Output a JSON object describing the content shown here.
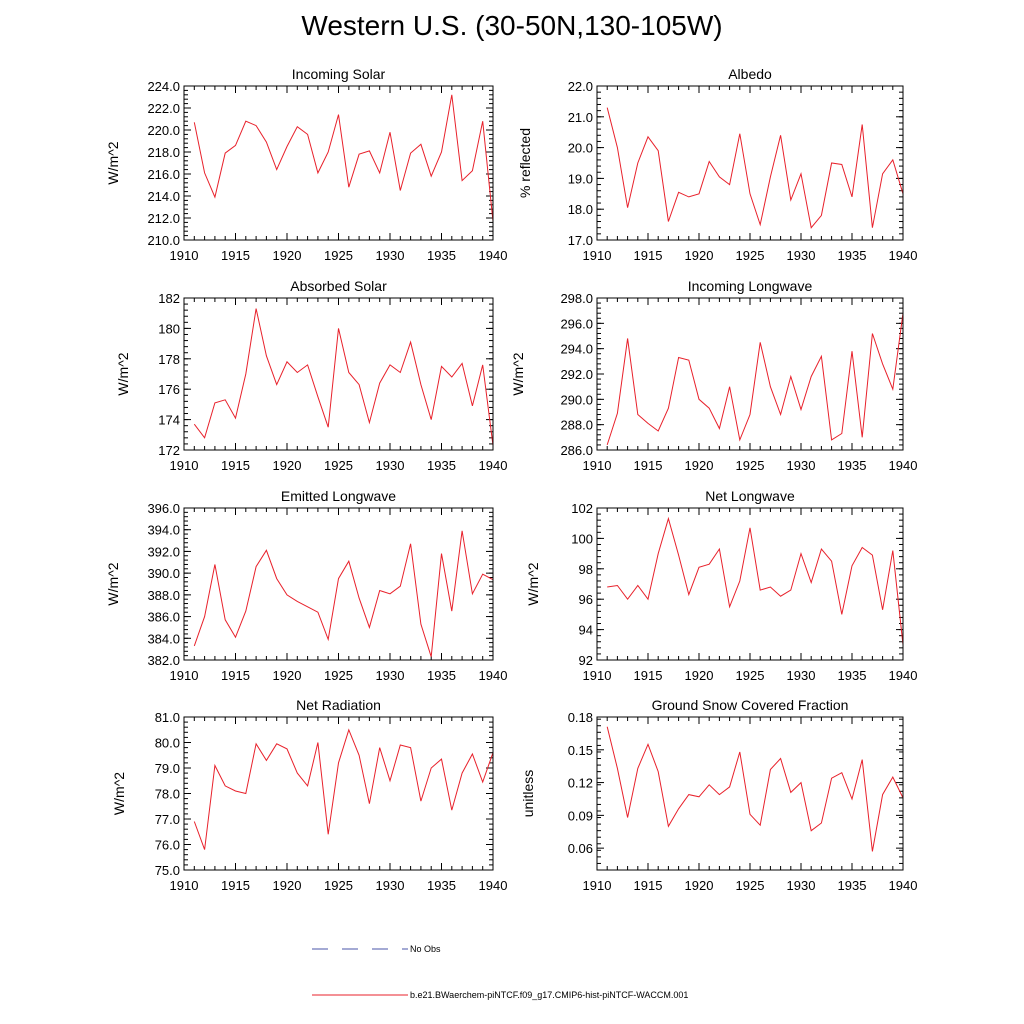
{
  "page": {
    "title": "Western U.S. (30-50N,130-105W)"
  },
  "legend": {
    "no_obs_label": "No Obs",
    "no_obs_color": "#4a55a8",
    "run_label": "b.e21.BWaerchem-piNTCF.f09_g17.CMIP6-hist-piNTCF-WACCM.001",
    "run_color": "#e8212b"
  },
  "chart_data": [
    {
      "type": "line",
      "title": "Incoming Solar",
      "ylabel": "W/m^2",
      "xlim": [
        1910,
        1940
      ],
      "ylim": [
        210.0,
        224.0
      ],
      "xticks": [
        1910,
        1915,
        1920,
        1925,
        1930,
        1935,
        1940
      ],
      "yticks": [
        "210.0",
        "212.0",
        "214.0",
        "216.0",
        "218.0",
        "220.0",
        "222.0",
        "224.0"
      ],
      "x": [
        1911,
        1912,
        1913,
        1914,
        1915,
        1916,
        1917,
        1918,
        1919,
        1920,
        1921,
        1922,
        1923,
        1924,
        1925,
        1926,
        1927,
        1928,
        1929,
        1930,
        1931,
        1932,
        1933,
        1934,
        1935,
        1936,
        1937,
        1938,
        1939,
        1940
      ],
      "values": [
        220.7,
        216.1,
        213.9,
        217.9,
        218.6,
        220.8,
        220.4,
        218.9,
        216.4,
        218.5,
        220.3,
        219.6,
        216.1,
        218.0,
        221.4,
        214.8,
        217.8,
        218.1,
        216.1,
        219.8,
        214.5,
        217.9,
        218.7,
        215.8,
        218.0,
        223.2,
        215.4,
        216.3,
        220.8,
        211.7
      ]
    },
    {
      "type": "line",
      "title": "Albedo",
      "ylabel": "% reflected",
      "xlim": [
        1910,
        1940
      ],
      "ylim": [
        17.0,
        22.0
      ],
      "xticks": [
        1910,
        1915,
        1920,
        1925,
        1930,
        1935,
        1940
      ],
      "yticks": [
        "17.0",
        "18.0",
        "19.0",
        "20.0",
        "21.0",
        "22.0"
      ],
      "x": [
        1911,
        1912,
        1913,
        1914,
        1915,
        1916,
        1917,
        1918,
        1919,
        1920,
        1921,
        1922,
        1923,
        1924,
        1925,
        1926,
        1927,
        1928,
        1929,
        1930,
        1931,
        1932,
        1933,
        1934,
        1935,
        1936,
        1937,
        1938,
        1939,
        1940
      ],
      "values": [
        21.3,
        20.0,
        18.05,
        19.5,
        20.35,
        19.9,
        17.6,
        18.55,
        18.4,
        18.5,
        19.55,
        19.05,
        18.8,
        20.45,
        18.5,
        17.5,
        19.05,
        20.4,
        18.3,
        19.15,
        17.4,
        17.8,
        19.5,
        19.45,
        18.4,
        20.75,
        17.4,
        19.15,
        19.6,
        18.5
      ]
    },
    {
      "type": "line",
      "title": "Absorbed Solar",
      "ylabel": "W/m^2",
      "xlim": [
        1910,
        1940
      ],
      "ylim": [
        172,
        182
      ],
      "xticks": [
        1910,
        1915,
        1920,
        1925,
        1930,
        1935,
        1940
      ],
      "yticks": [
        "172",
        "174",
        "176",
        "178",
        "180",
        "182"
      ],
      "x": [
        1911,
        1912,
        1913,
        1914,
        1915,
        1916,
        1917,
        1918,
        1919,
        1920,
        1921,
        1922,
        1923,
        1924,
        1925,
        1926,
        1927,
        1928,
        1929,
        1930,
        1931,
        1932,
        1933,
        1934,
        1935,
        1936,
        1937,
        1938,
        1939,
        1940
      ],
      "values": [
        173.7,
        172.8,
        175.1,
        175.3,
        174.1,
        177.0,
        181.3,
        178.2,
        176.3,
        177.8,
        177.1,
        177.6,
        175.5,
        173.5,
        180.0,
        177.1,
        176.3,
        173.8,
        176.4,
        177.6,
        177.1,
        179.1,
        176.3,
        174.0,
        177.5,
        176.8,
        177.7,
        174.9,
        177.6,
        172.3
      ]
    },
    {
      "type": "line",
      "title": "Incoming Longwave",
      "ylabel": "W/m^2",
      "xlim": [
        1910,
        1940
      ],
      "ylim": [
        286.0,
        298.0
      ],
      "xticks": [
        1910,
        1915,
        1920,
        1925,
        1930,
        1935,
        1940
      ],
      "yticks": [
        "286.0",
        "288.0",
        "290.0",
        "292.0",
        "294.0",
        "296.0",
        "298.0"
      ],
      "x": [
        1911,
        1912,
        1913,
        1914,
        1915,
        1916,
        1917,
        1918,
        1919,
        1920,
        1921,
        1922,
        1923,
        1924,
        1925,
        1926,
        1927,
        1928,
        1929,
        1930,
        1931,
        1932,
        1933,
        1934,
        1935,
        1936,
        1937,
        1938,
        1939,
        1940
      ],
      "values": [
        286.4,
        288.9,
        294.8,
        288.8,
        288.1,
        287.5,
        289.3,
        293.3,
        293.1,
        290.0,
        289.3,
        287.7,
        291.0,
        286.8,
        288.8,
        294.5,
        291.0,
        288.8,
        291.8,
        289.2,
        291.8,
        293.4,
        286.8,
        287.3,
        293.8,
        287.0,
        295.2,
        292.8,
        290.8,
        296.8
      ]
    },
    {
      "type": "line",
      "title": "Emitted Longwave",
      "ylabel": "W/m^2",
      "xlim": [
        1910,
        1940
      ],
      "ylim": [
        382.0,
        396.0
      ],
      "xticks": [
        1910,
        1915,
        1920,
        1925,
        1930,
        1935,
        1940
      ],
      "yticks": [
        "382.0",
        "384.0",
        "386.0",
        "388.0",
        "390.0",
        "392.0",
        "394.0",
        "396.0"
      ],
      "x": [
        1911,
        1912,
        1913,
        1914,
        1915,
        1916,
        1917,
        1918,
        1919,
        1920,
        1921,
        1922,
        1923,
        1924,
        1925,
        1926,
        1927,
        1928,
        1929,
        1930,
        1931,
        1932,
        1933,
        1934,
        1935,
        1936,
        1937,
        1938,
        1939,
        1940
      ],
      "values": [
        383.3,
        386.0,
        390.8,
        385.7,
        384.1,
        386.5,
        390.6,
        392.1,
        389.5,
        388.0,
        387.4,
        386.9,
        386.4,
        383.9,
        389.5,
        391.1,
        387.7,
        385.0,
        388.4,
        388.1,
        388.8,
        392.7,
        385.3,
        382.3,
        391.8,
        386.5,
        393.9,
        388.1,
        389.9,
        389.4
      ]
    },
    {
      "type": "line",
      "title": "Net Longwave",
      "ylabel": "W/m^2",
      "xlim": [
        1910,
        1940
      ],
      "ylim": [
        92,
        102
      ],
      "xticks": [
        1910,
        1915,
        1920,
        1925,
        1930,
        1935,
        1940
      ],
      "yticks": [
        "92",
        "94",
        "96",
        "98",
        "100",
        "102"
      ],
      "x": [
        1911,
        1912,
        1913,
        1914,
        1915,
        1916,
        1917,
        1918,
        1919,
        1920,
        1921,
        1922,
        1923,
        1924,
        1925,
        1926,
        1927,
        1928,
        1929,
        1930,
        1931,
        1932,
        1933,
        1934,
        1935,
        1936,
        1937,
        1938,
        1939,
        1940
      ],
      "values": [
        96.8,
        96.9,
        96.0,
        96.9,
        96.0,
        99.0,
        101.3,
        98.9,
        96.3,
        98.1,
        98.3,
        99.3,
        95.5,
        97.2,
        100.7,
        96.6,
        96.8,
        96.2,
        96.6,
        99.0,
        97.1,
        99.3,
        98.5,
        95.0,
        98.2,
        99.4,
        98.9,
        95.3,
        99.2,
        93.0
      ]
    },
    {
      "type": "line",
      "title": "Net Radiation",
      "ylabel": "W/m^2",
      "xlim": [
        1910,
        1940
      ],
      "ylim": [
        75.0,
        81.0
      ],
      "xticks": [
        1910,
        1915,
        1920,
        1925,
        1930,
        1935,
        1940
      ],
      "yticks": [
        "75.0",
        "76.0",
        "77.0",
        "78.0",
        "79.0",
        "80.0",
        "81.0"
      ],
      "x": [
        1911,
        1912,
        1913,
        1914,
        1915,
        1916,
        1917,
        1918,
        1919,
        1920,
        1921,
        1922,
        1923,
        1924,
        1925,
        1926,
        1927,
        1928,
        1929,
        1930,
        1931,
        1932,
        1933,
        1934,
        1935,
        1936,
        1937,
        1938,
        1939,
        1940
      ],
      "values": [
        76.9,
        75.8,
        79.1,
        78.3,
        78.1,
        78.0,
        79.95,
        79.3,
        79.95,
        79.75,
        78.8,
        78.3,
        80.0,
        76.4,
        79.2,
        80.5,
        79.5,
        77.6,
        79.8,
        78.5,
        79.9,
        79.8,
        77.7,
        79.0,
        79.35,
        77.35,
        78.8,
        79.55,
        78.45,
        79.6
      ]
    },
    {
      "type": "line",
      "title": "Ground Snow Covered Fraction",
      "ylabel": "unitless",
      "xlim": [
        1910,
        1940
      ],
      "ylim": [
        0.04,
        0.18
      ],
      "xticks": [
        1910,
        1915,
        1920,
        1925,
        1930,
        1935,
        1940
      ],
      "yticks": [
        "0.06",
        "0.09",
        "0.12",
        "0.15",
        "0.18"
      ],
      "x": [
        1911,
        1912,
        1913,
        1914,
        1915,
        1916,
        1917,
        1918,
        1919,
        1920,
        1921,
        1922,
        1923,
        1924,
        1925,
        1926,
        1927,
        1928,
        1929,
        1930,
        1931,
        1932,
        1933,
        1934,
        1935,
        1936,
        1937,
        1938,
        1939,
        1940
      ],
      "values": [
        0.171,
        0.133,
        0.088,
        0.133,
        0.155,
        0.13,
        0.08,
        0.096,
        0.109,
        0.107,
        0.118,
        0.109,
        0.116,
        0.148,
        0.091,
        0.081,
        0.132,
        0.142,
        0.111,
        0.12,
        0.076,
        0.083,
        0.124,
        0.129,
        0.105,
        0.141,
        0.057,
        0.109,
        0.125,
        0.106
      ]
    }
  ]
}
